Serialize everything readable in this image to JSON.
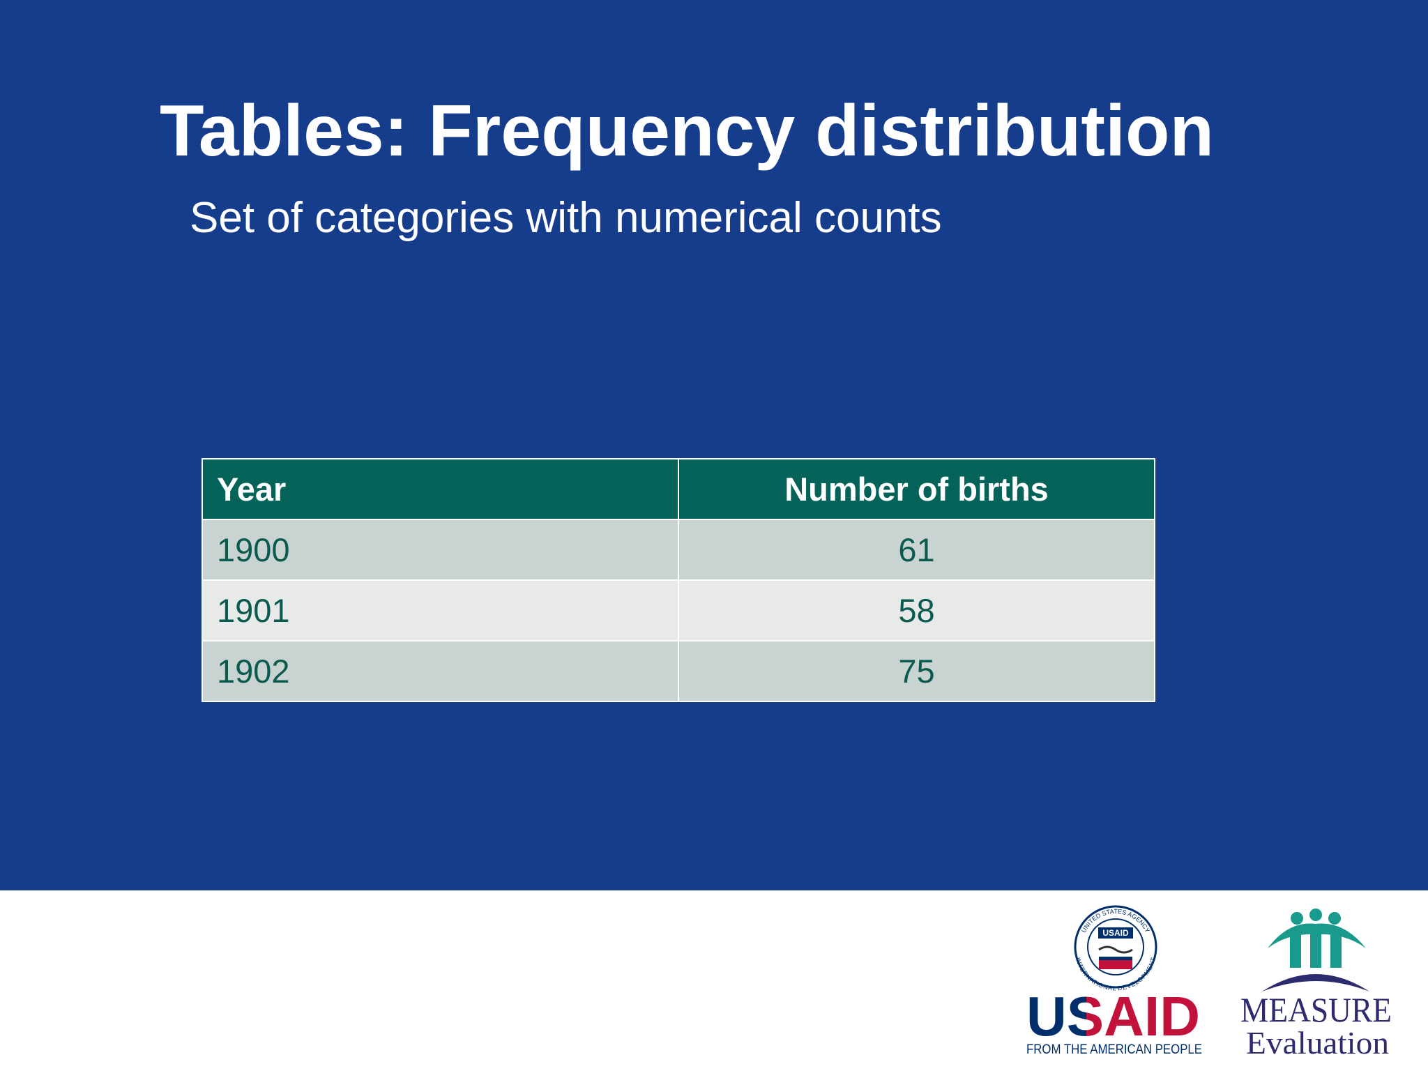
{
  "header": {
    "title": "Tables: Frequency distribution",
    "subtitle": "Set of categories with numerical counts"
  },
  "table": {
    "columns": [
      "Year",
      "Number of births"
    ],
    "rows": [
      [
        1900,
        61
      ],
      [
        1901,
        58
      ],
      [
        1902,
        75
      ]
    ]
  },
  "logos": {
    "usaid": {
      "seal_label": "USAID",
      "seal_top": "UNITED STATES AGENCY",
      "seal_bottom": "INTERNATIONAL DEVELOPMENT",
      "name": "USAID",
      "tagline": "FROM THE AMERICAN PEOPLE"
    },
    "measure": {
      "name": "MEASURE",
      "sub": "Evaluation"
    }
  }
}
